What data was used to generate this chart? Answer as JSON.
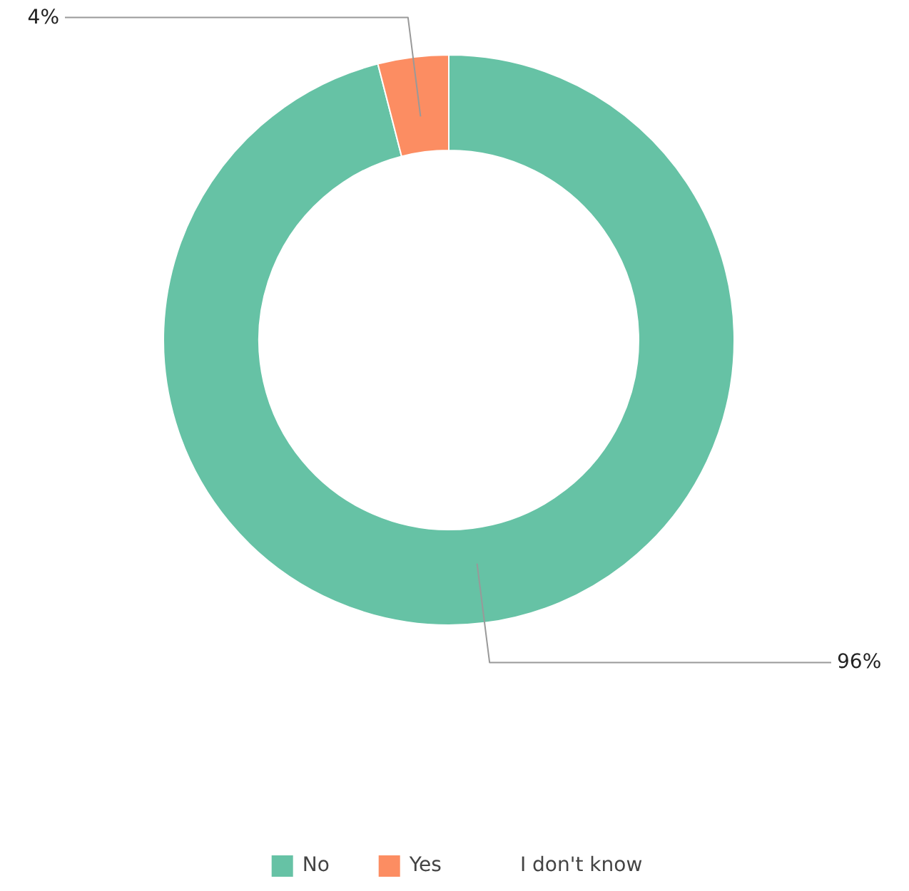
{
  "chart_data": {
    "type": "donut",
    "categories": [
      "No",
      "Yes",
      "I don't know"
    ],
    "values": [
      96,
      4,
      0
    ],
    "colors": [
      "#66c2a5",
      "#fc8d62",
      "#8da0cb"
    ],
    "value_labels": [
      "96%",
      "4%",
      null
    ],
    "legend": "bottom"
  }
}
